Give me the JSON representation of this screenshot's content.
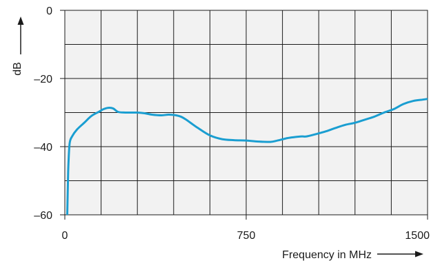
{
  "chart_data": {
    "type": "line",
    "xlabel": "Frequency in MHz",
    "ylabel": "dB",
    "xlim": [
      0,
      1500
    ],
    "ylim": [
      -60,
      0
    ],
    "x_ticks": [
      0,
      750,
      1500
    ],
    "x_tick_labels": [
      "0",
      "750",
      "1500"
    ],
    "y_ticks": [
      0,
      -20,
      -40,
      -60
    ],
    "y_tick_labels": [
      "0",
      "–20",
      "–40",
      "–60"
    ],
    "x_grid_step": 150,
    "y_grid_step": 10,
    "grid": true,
    "series": [
      {
        "color": "#1a9ed1",
        "x": [
          10,
          13,
          15,
          20,
          30,
          50,
          80,
          110,
          140,
          160,
          180,
          200,
          220,
          250,
          300,
          330,
          360,
          400,
          430,
          460,
          480,
          500,
          520,
          550,
          600,
          650,
          700,
          750,
          800,
          850,
          880,
          920,
          950,
          980,
          1000,
          1040,
          1080,
          1120,
          1160,
          1200,
          1240,
          1280,
          1320,
          1360,
          1400,
          1440,
          1480,
          1500
        ],
        "y": [
          -60,
          -50,
          -45,
          -39,
          -37,
          -35,
          -33,
          -31,
          -29.8,
          -29,
          -28.6,
          -28.8,
          -29.8,
          -30,
          -30,
          -30.2,
          -30.6,
          -30.8,
          -30.6,
          -30.8,
          -31.2,
          -32,
          -33,
          -34.5,
          -36.7,
          -37.8,
          -38.1,
          -38.2,
          -38.5,
          -38.6,
          -38.2,
          -37.5,
          -37.2,
          -37,
          -37,
          -36.3,
          -35.5,
          -34.5,
          -33.6,
          -33,
          -32.1,
          -31.2,
          -30,
          -29,
          -27.5,
          -26.6,
          -26.2,
          -26
        ]
      }
    ]
  }
}
